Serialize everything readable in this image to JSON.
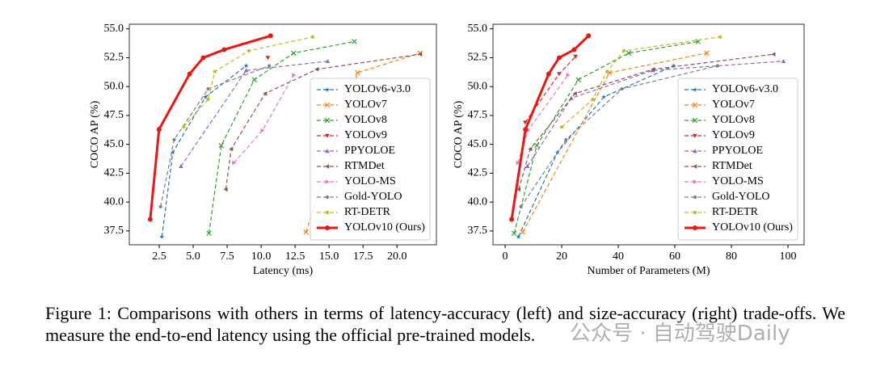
{
  "chart_data": [
    {
      "type": "line",
      "xlabel": "Latency (ms)",
      "ylabel": "COCO AP (%)",
      "xlim": [
        0.3,
        22.9
      ],
      "ylim": [
        36.3,
        55.4
      ],
      "xticks": [
        2.5,
        {
          "value": 5,
          "label": "5.0"
        },
        7.5,
        {
          "value": 10,
          "label": "10.0"
        },
        12.5,
        {
          "value": 15,
          "label": "15.0"
        },
        17.5,
        {
          "value": 20,
          "label": "20.0"
        }
      ],
      "yticks": [
        37.5,
        {
          "value": 40,
          "label": "40.0"
        },
        42.5,
        {
          "value": 45,
          "label": "45.0"
        },
        47.5,
        {
          "value": 50,
          "label": "50.0"
        },
        52.5,
        {
          "value": 55,
          "label": "55.0"
        }
      ],
      "legend": "lower right",
      "series": [
        {
          "name": "YOLOv6-v3.0",
          "color": "#1f77b4",
          "marker": "*",
          "linestyle": "dashed",
          "x": [
            2.7,
            3.5,
            5.9,
            8.9
          ],
          "values": [
            37.0,
            44.3,
            49.1,
            51.8
          ]
        },
        {
          "name": "YOLOv7",
          "color": "#ff7f0e",
          "marker": "x",
          "linestyle": "dashed",
          "x": [
            13.3,
            17.1,
            21.7
          ],
          "values": [
            37.4,
            51.2,
            52.9
          ]
        },
        {
          "name": "YOLOv8",
          "color": "#2ca02c",
          "marker": "x",
          "linestyle": "dashed",
          "x": [
            6.16,
            7.07,
            9.5,
            12.39,
            16.86
          ],
          "values": [
            37.3,
            44.9,
            50.6,
            52.9,
            53.9
          ]
        },
        {
          "name": "YOLOv9",
          "color": "#d62728",
          "marker": "v",
          "linestyle": "dashed",
          "x": [
            10.5
          ],
          "values": [
            52.5
          ]
        },
        {
          "name": "PPYOLOE",
          "color": "#9467bd",
          "marker": "^",
          "linestyle": "dashed",
          "x": [
            4.1,
            8.9,
            14.9
          ],
          "values": [
            43.1,
            51.4,
            52.2
          ]
        },
        {
          "name": "RTMDet",
          "color": "#8c564b",
          "marker": "<",
          "linestyle": "dashed",
          "x": [
            7.4,
            7.8,
            10.3,
            14.1,
            21.7
          ],
          "values": [
            41.1,
            44.6,
            49.4,
            51.5,
            52.8
          ]
        },
        {
          "name": "YOLO-MS",
          "color": "#e377c2",
          "marker": ">",
          "linestyle": "dashed",
          "x": [
            8.0,
            10.1,
            12.4
          ],
          "values": [
            43.4,
            46.2,
            51.0
          ]
        },
        {
          "name": "Gold-YOLO",
          "color": "#7f7f7f",
          "marker": "o",
          "linestyle": "dashed",
          "x": [
            2.6,
            3.6,
            6.1,
            10.6
          ],
          "values": [
            39.6,
            45.4,
            49.8,
            51.8
          ]
        },
        {
          "name": "RT-DETR",
          "color": "#bcbd22",
          "marker": "o",
          "linestyle": "dashed",
          "x": [
            4.3,
            6.1,
            6.6,
            9.1,
            13.8
          ],
          "values": [
            46.5,
            48.9,
            51.3,
            53.1,
            54.3
          ]
        },
        {
          "name": "YOLOv10 (Ours)",
          "color": "#f0140f",
          "marker": "o",
          "linestyle": "solid",
          "x": [
            1.84,
            2.49,
            4.74,
            5.74,
            7.28,
            10.7
          ],
          "values": [
            38.5,
            46.3,
            51.1,
            52.5,
            53.2,
            54.4
          ]
        }
      ]
    },
    {
      "type": "line",
      "xlabel": "Number of Parameters (M)",
      "ylabel": "COCO AP (%)",
      "xlim": [
        -4.3,
        105.7
      ],
      "ylim": [
        36.3,
        55.4
      ],
      "xticks": [
        0,
        20,
        40,
        60,
        80,
        100
      ],
      "yticks": [
        37.5,
        {
          "value": 40,
          "label": "40.0"
        },
        42.5,
        {
          "value": 45,
          "label": "45.0"
        },
        47.5,
        {
          "value": 50,
          "label": "50.0"
        },
        52.5,
        {
          "value": 55,
          "label": "55.0"
        }
      ],
      "legend": "lower right",
      "series": [
        {
          "name": "YOLOv6-v3.0",
          "color": "#1f77b4",
          "marker": "*",
          "linestyle": "dashed",
          "x": [
            4.7,
            18.5,
            34.9,
            59.6
          ],
          "values": [
            37.0,
            44.3,
            49.1,
            51.8
          ]
        },
        {
          "name": "YOLOv7",
          "color": "#ff7f0e",
          "marker": "x",
          "linestyle": "dashed",
          "x": [
            6.2,
            36.9,
            71.3
          ],
          "values": [
            37.4,
            51.2,
            52.9
          ]
        },
        {
          "name": "YOLOv8",
          "color": "#2ca02c",
          "marker": "x",
          "linestyle": "dashed",
          "x": [
            3.2,
            11.2,
            25.9,
            43.7,
            68.2
          ],
          "values": [
            37.3,
            44.9,
            50.6,
            52.9,
            53.9
          ]
        },
        {
          "name": "YOLOv9",
          "color": "#d62728",
          "marker": "v",
          "linestyle": "dashed",
          "x": [
            7.1,
            19.1,
            24.9
          ],
          "values": [
            46.9,
            51.1,
            52.6
          ]
        },
        {
          "name": "PPYOLOE",
          "color": "#9467bd",
          "marker": "^",
          "linestyle": "dashed",
          "x": [
            7.9,
            23.4,
            52.2,
            98.4
          ],
          "values": [
            43.1,
            49.0,
            51.4,
            52.2
          ]
        },
        {
          "name": "RTMDet",
          "color": "#8c564b",
          "marker": "<",
          "linestyle": "dashed",
          "x": [
            4.8,
            8.9,
            24.7,
            52.3,
            94.9
          ],
          "values": [
            41.1,
            44.6,
            49.4,
            51.5,
            52.8
          ]
        },
        {
          "name": "YOLO-MS",
          "color": "#e377c2",
          "marker": ">",
          "linestyle": "dashed",
          "x": [
            4.5,
            8.1,
            22.2
          ],
          "values": [
            43.4,
            46.2,
            51.0
          ]
        },
        {
          "name": "Gold-YOLO",
          "color": "#7f7f7f",
          "marker": "o",
          "linestyle": "dashed",
          "x": [
            5.6,
            21.5,
            41.3,
            75.1
          ],
          "values": [
            39.6,
            45.4,
            49.8,
            51.8
          ]
        },
        {
          "name": "RT-DETR",
          "color": "#bcbd22",
          "marker": "o",
          "linestyle": "dashed",
          "x": [
            20,
            31,
            36,
            42,
            76
          ],
          "values": [
            46.5,
            48.9,
            51.3,
            53.1,
            54.3
          ]
        },
        {
          "name": "YOLOv10 (Ours)",
          "color": "#f0140f",
          "marker": "o",
          "linestyle": "solid",
          "x": [
            2.3,
            7.2,
            15.4,
            19.1,
            24.4,
            29.5
          ],
          "values": [
            38.5,
            46.3,
            51.1,
            52.5,
            53.2,
            54.4
          ]
        }
      ]
    }
  ],
  "caption": "Figure 1: Comparisons with others in terms of latency-accuracy (left) and size-accuracy (right) trade-offs. We measure the end-to-end latency using the official pre-trained models.",
  "watermark": "公众号 · 自动驾驶Daily"
}
